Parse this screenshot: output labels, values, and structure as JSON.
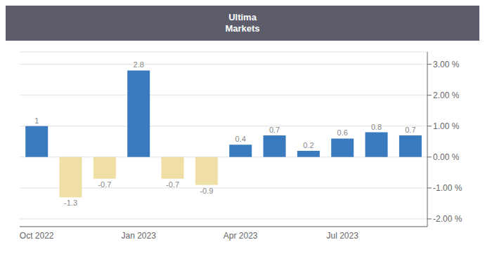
{
  "chart_data": {
    "type": "bar",
    "annotations": [
      "Ultima",
      "Markets"
    ],
    "categories": [
      "Oct 2022",
      null,
      null,
      "Jan 2023",
      null,
      null,
      "Apr 2023",
      null,
      null,
      "Jul 2023",
      null,
      null
    ],
    "values": [
      1.0,
      -1.3,
      -0.7,
      2.8,
      -0.7,
      -0.9,
      0.4,
      0.7,
      0.2,
      0.6,
      0.8,
      0.7
    ],
    "colors": [
      "#3a7abf",
      "#f0dfa5",
      "#f0dfa5",
      "#3a7abf",
      "#f0dfa5",
      "#f0dfa5",
      "#3a7abf",
      "#3a7abf",
      "#3a7abf",
      "#3a7abf",
      "#3a7abf",
      "#3a7abf"
    ],
    "ylim": [
      -2.25,
      3.4
    ],
    "yticks": [
      {
        "value": -2.0,
        "label": "-2.00 %"
      },
      {
        "value": -1.0,
        "label": "-1.00 %"
      },
      {
        "value": 0.0,
        "label": "0.00 %"
      },
      {
        "value": 1.0,
        "label": "1.00 %"
      },
      {
        "value": 2.0,
        "label": "2.00 %"
      },
      {
        "value": 3.0,
        "label": "3.00 %"
      }
    ],
    "grid": true,
    "data_labels": true
  }
}
